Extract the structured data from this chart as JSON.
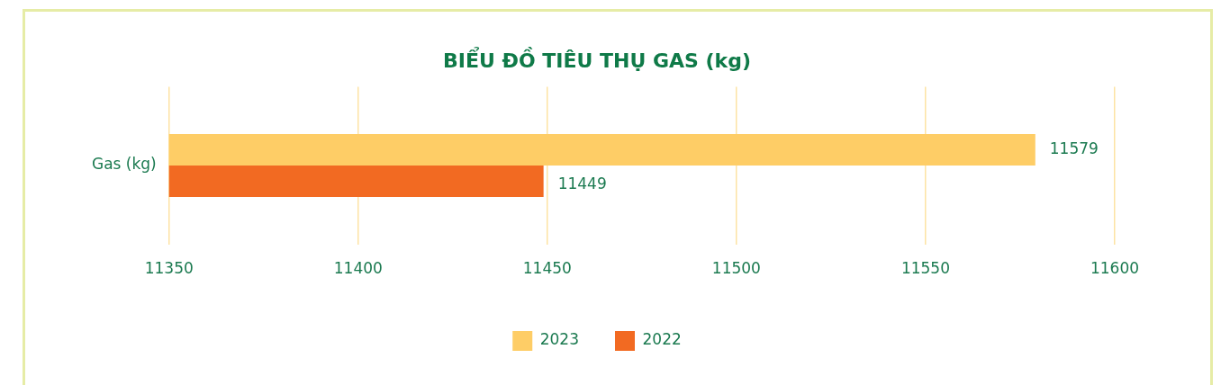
{
  "chart_data": {
    "type": "bar",
    "orientation": "horizontal",
    "title": "BIỂU ĐỒ TIÊU THỤ GAS (kg)",
    "categories": [
      "Gas (kg)"
    ],
    "series": [
      {
        "name": "2023",
        "color": "#fecd66",
        "values": [
          11579
        ]
      },
      {
        "name": "2022",
        "color": "#f26a22",
        "values": [
          11449
        ]
      }
    ],
    "xlim": [
      11350,
      11600
    ],
    "xticks": [
      11350,
      11400,
      11450,
      11500,
      11550,
      11600
    ],
    "grid": "x",
    "legend": "bottom",
    "data_labels": true
  }
}
